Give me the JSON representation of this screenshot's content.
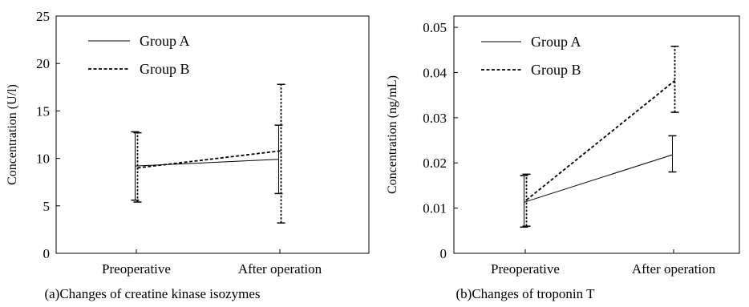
{
  "chart_data": [
    {
      "type": "line",
      "title": "",
      "caption": "(a)Changes of creatine kinase isozymes",
      "xlabel": "",
      "ylabel": "Concentration (U/l)",
      "categories": [
        "Preoperative",
        "After operation"
      ],
      "ylim": [
        0,
        25
      ],
      "yticks": [
        0,
        5,
        10,
        15,
        20,
        25
      ],
      "ytick_labels": [
        "0",
        "5",
        "10",
        "15",
        "20",
        "25"
      ],
      "grid": false,
      "legend": "top-left",
      "series": [
        {
          "name": "Group A",
          "style": "solid",
          "values": [
            9.2,
            9.9
          ],
          "err_low": [
            5.6,
            6.3
          ],
          "err_high": [
            12.8,
            13.5
          ]
        },
        {
          "name": "Group B",
          "style": "dashed",
          "values": [
            9.0,
            10.8
          ],
          "err_low": [
            5.4,
            3.2
          ],
          "err_high": [
            12.7,
            17.8
          ]
        }
      ]
    },
    {
      "type": "line",
      "title": "",
      "caption": "(b)Changes of troponin T",
      "xlabel": "",
      "ylabel": "Concentration (ng/mL)",
      "categories": [
        "Preoperative",
        "After operation"
      ],
      "ylim": [
        0,
        0.0525
      ],
      "yticks": [
        0,
        0.01,
        0.02,
        0.03,
        0.04,
        0.05
      ],
      "ytick_labels": [
        "0",
        "0.01",
        "0.02",
        "0.03",
        "0.04",
        "0.05"
      ],
      "grid": false,
      "legend": "top-left",
      "series": [
        {
          "name": "Group A",
          "style": "solid",
          "values": [
            0.0113,
            0.0218
          ],
          "err_low": [
            0.0058,
            0.018
          ],
          "err_high": [
            0.0172,
            0.026
          ]
        },
        {
          "name": "Group B",
          "style": "dashed",
          "values": [
            0.0118,
            0.0382
          ],
          "err_low": [
            0.006,
            0.0312
          ],
          "err_high": [
            0.0175,
            0.0458
          ]
        }
      ]
    }
  ]
}
